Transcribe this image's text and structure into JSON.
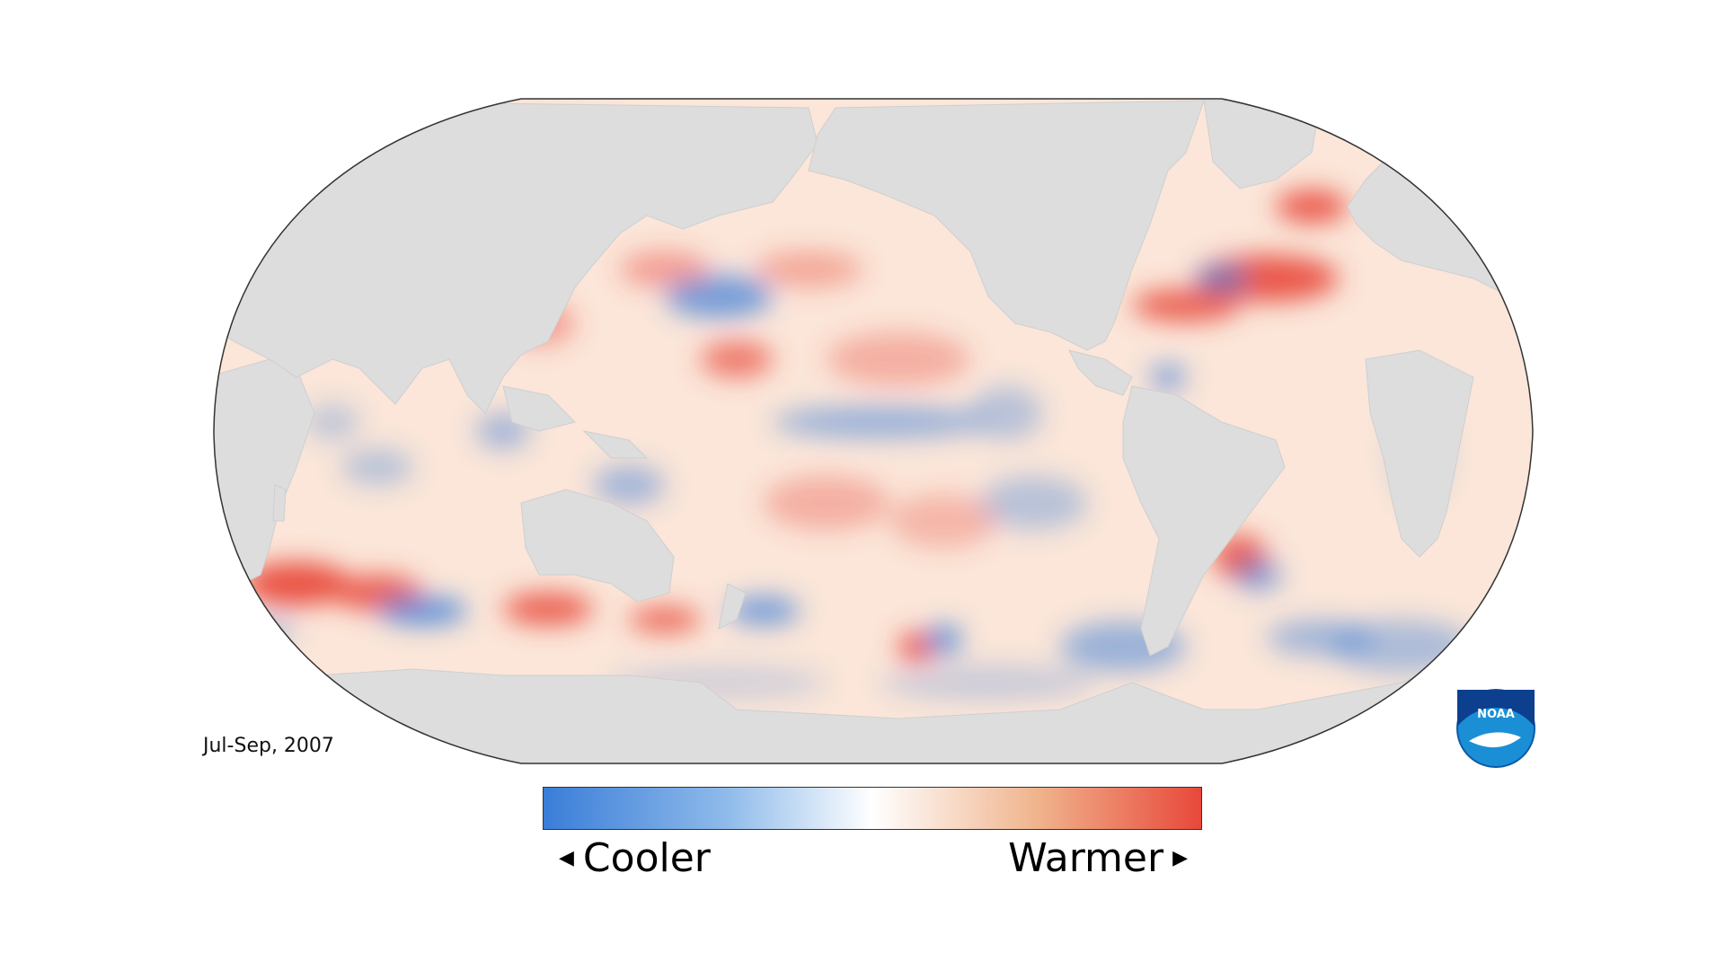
{
  "map": {
    "projection": "robinson",
    "land_color": "#dddddd",
    "colors": {
      "cooler": "#3a7dd8",
      "neutral": "#ffffff",
      "warmer": "#e8483a"
    }
  },
  "period_label": "Jul-Sep, 2007",
  "legend": {
    "cooler_label": "Cooler",
    "warmer_label": "Warmer",
    "cooler_arrow": "◀",
    "warmer_arrow": "▶",
    "gradient": [
      "#3a7dd8",
      "#8fbbea",
      "#ffffff",
      "#f0b48d",
      "#e8483a"
    ]
  },
  "logo": {
    "text": "NOAA",
    "icon": "noaa-logo-icon"
  }
}
